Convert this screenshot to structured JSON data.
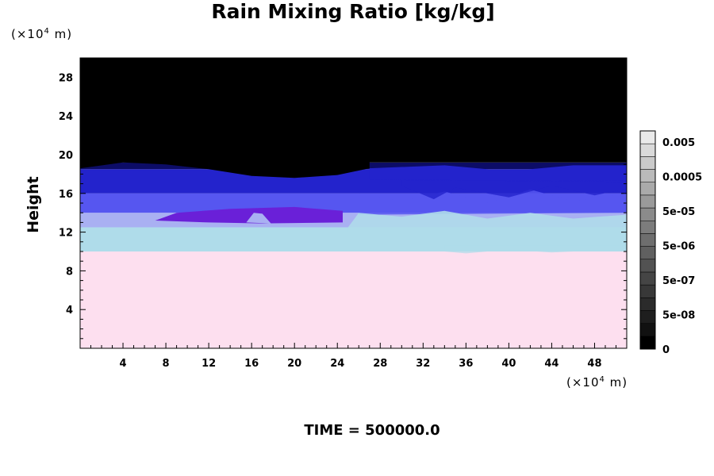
{
  "chart_data": {
    "type": "heatmap",
    "title": "Rain Mixing Ratio [kg/kg]",
    "xlabel": "",
    "ylabel": "Height",
    "x_unit_prefix": "(×10",
    "x_unit_exp": "4",
    "x_unit_suffix": " m)",
    "y_unit_prefix": "(×10",
    "y_unit_exp": "4",
    "y_unit_suffix": " m)",
    "xlim": [
      0,
      51
    ],
    "ylim": [
      0,
      30
    ],
    "x_ticks": [
      4,
      8,
      12,
      16,
      20,
      24,
      28,
      32,
      36,
      40,
      44,
      48
    ],
    "y_ticks": [
      4,
      8,
      12,
      16,
      20,
      24,
      28
    ],
    "colorbar": {
      "labels": [
        "0.005",
        "0.0005",
        "5e-05",
        "5e-06",
        "5e-07",
        "5e-08",
        "0"
      ],
      "n_levels": 17,
      "colors": [
        "#000000",
        "#111111",
        "#1e1e1e",
        "#2b2b2b",
        "#383838",
        "#454545",
        "#525252",
        "#606060",
        "#6e6e6e",
        "#7c7c7c",
        "#8b8b8b",
        "#9a9a9a",
        "#aaaaaa",
        "#bababa",
        "#cacaca",
        "#dadada",
        "#eaeaea"
      ]
    },
    "layers": [
      {
        "name": "pink",
        "color": "#fddfef",
        "y_from": 0,
        "y_to": 10
      },
      {
        "name": "light-blue",
        "color": "#afdcea",
        "y_from": 10,
        "y_to": 12.5
      },
      {
        "name": "pale-periwinkle",
        "color": "#a9b0f2",
        "y_from": 12.5,
        "y_to": 14
      },
      {
        "name": "mid-blue",
        "color": "#5656f0",
        "y_from": 14,
        "y_to": 16
      },
      {
        "name": "deep-blue",
        "color": "#2323cc",
        "y_from": 16,
        "y_to": 18.5
      },
      {
        "name": "navy",
        "color": "#0c0c66",
        "y_from": 18.5,
        "y_to": 19.2
      },
      {
        "name": "black",
        "color": "#000000",
        "y_from": 19.2,
        "y_to": 30
      }
    ],
    "colors": {
      "pink": "#fddfef",
      "light_blue": "#afdcea",
      "periwinkle": "#a9b0f2",
      "mid_blue": "#5656f0",
      "deep_blue": "#2323cc",
      "purple": "#6a20d8",
      "black": "#000000"
    }
  },
  "footer": {
    "time_label": "TIME = 500000.0"
  }
}
